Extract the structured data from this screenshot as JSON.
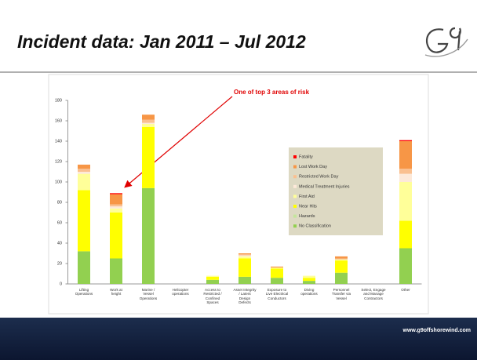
{
  "header": {
    "title": "Incident data: Jan 2011 – Jul 2012"
  },
  "footer": {
    "url": "www.g9offshorewind.com"
  },
  "chart_data": {
    "type": "stacked_bar",
    "annotation": "One of top 3 areas of risk",
    "categories": [
      "Lifting\nOperations",
      "Work at\nheight",
      "Marine /\nVessel\nOperations",
      "Helicopter\noperations",
      "Access to\nRestricted /\nConfined\nSpaces",
      "Asset Integrity\n/ Latent\nDesign\nDefects",
      "Exposure to\nLive Electrical\nConductors",
      "Diving\noperations",
      "Personnel\nTransfer via\nVessel",
      "Select, Engage\nand Manage\nContractors",
      "Other"
    ],
    "series": [
      {
        "name": "No Classification",
        "color": "#92d050",
        "values": [
          32,
          25,
          94,
          0,
          4,
          7,
          6,
          3,
          11,
          0,
          35
        ]
      },
      {
        "name": "Hazards",
        "color": "#c4e59c",
        "values": [
          0,
          0,
          0,
          0,
          0,
          0,
          0,
          0,
          0,
          0,
          0
        ]
      },
      {
        "name": "Near Hits",
        "color": "#ffff00",
        "values": [
          60,
          45,
          60,
          0,
          3,
          18,
          9,
          3,
          12,
          0,
          27
        ]
      },
      {
        "name": "First Aid",
        "color": "#ffff99",
        "values": [
          16,
          4,
          3,
          0,
          1,
          2,
          1,
          2,
          1,
          0,
          38
        ]
      },
      {
        "name": "Medical Treatment Injuries",
        "color": "#fde9d9",
        "values": [
          2,
          2,
          1,
          0,
          0,
          1,
          0,
          0,
          0,
          0,
          8
        ]
      },
      {
        "name": "Restricted Work Day",
        "color": "#fac090",
        "values": [
          3,
          2,
          3,
          0,
          0,
          1,
          0,
          0,
          1,
          0,
          5
        ]
      },
      {
        "name": "Lost Work Day",
        "color": "#f79646",
        "values": [
          4,
          10,
          5,
          0,
          0,
          1,
          1,
          0,
          2,
          0,
          27
        ]
      },
      {
        "name": "Fatality",
        "color": "#ff0000",
        "values": [
          0,
          1,
          0,
          0,
          0,
          0,
          0,
          0,
          0,
          0,
          1
        ]
      }
    ],
    "ylim": [
      0,
      180
    ],
    "yticks": [
      0,
      20,
      40,
      60,
      80,
      100,
      120,
      140,
      160,
      180
    ],
    "grid": false
  }
}
